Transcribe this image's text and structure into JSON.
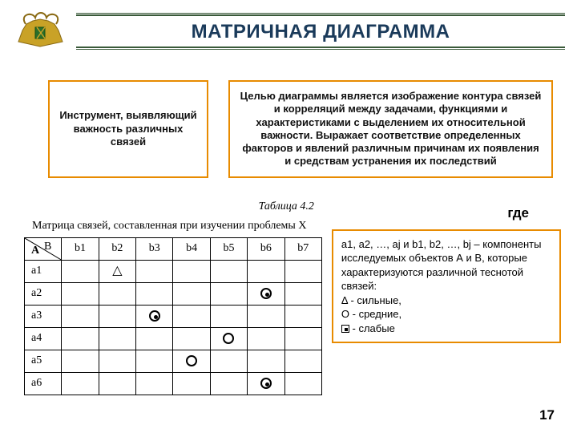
{
  "title": "МАТРИЧНАЯ ДИАГРАММА",
  "box_left": "Инструмент, выявляющий важность различных связей",
  "box_right": "Целью диаграммы является изображение контура связей и корреляций между задачами, функциями и характеристиками с выделением их относительной важности. Выражает соответствие определенных факторов и явлений различным причинам их появления и средствам устранения их последствий",
  "table": {
    "caption": "Таблица 4.2",
    "subtitle": "Матрица связей, составленная при изучении проблемы X",
    "col_labels": [
      "b1",
      "b2",
      "b3",
      "b4",
      "b5",
      "b6",
      "b7"
    ],
    "row_labels": [
      "a1",
      "a2",
      "a3",
      "a4",
      "a5",
      "a6"
    ],
    "corner_B": "B",
    "corner_A": "A",
    "cells": {
      "a1": [
        "",
        "tri",
        "",
        "",
        "",
        "",
        ""
      ],
      "a2": [
        "",
        "",
        "",
        "",
        "",
        "dot",
        ""
      ],
      "a3": [
        "",
        "",
        "dot",
        "",
        "",
        "",
        ""
      ],
      "a4": [
        "",
        "",
        "",
        "",
        "circ",
        "",
        ""
      ],
      "a5": [
        "",
        "",
        "",
        "circ",
        "",
        "",
        ""
      ],
      "a6": [
        "",
        "",
        "",
        "",
        "",
        "dot",
        ""
      ]
    }
  },
  "gde": "где",
  "legend": {
    "body1": "a1, a2, …, aj и b1, b2, …, bj – компоненты исследуемых объектов А и В, которые характеризуются различной теснотой связей:",
    "strong": "Δ - сильные,",
    "medium": "О - средние,",
    "weak": "- слабые"
  },
  "page": "17",
  "colors": {
    "accent": "#e88b00",
    "rule": "#3a5a3a",
    "title": "#1a3a5a"
  }
}
